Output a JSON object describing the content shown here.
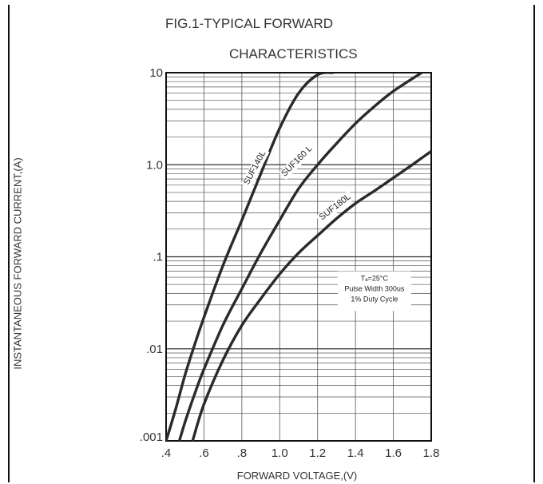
{
  "chart_data": {
    "type": "line",
    "title": "FIG.1-TYPICAL FORWARD",
    "subtitle": "CHARACTERISTICS",
    "xlabel": "FORWARD VOLTAGE,(V)",
    "ylabel": "INSTANTANEOUS FORWARD CURRENT,(A)",
    "xlim": [
      0.4,
      1.8
    ],
    "ylim": [
      0.001,
      10
    ],
    "yscale": "log",
    "grid": true,
    "x_ticks": [
      ".4",
      ".6",
      ".8",
      "1.0",
      "1.2",
      "1.4",
      "1.6",
      "1.8"
    ],
    "y_ticks": [
      ".001",
      ".01",
      ".1",
      "1.0",
      "10"
    ],
    "series": [
      {
        "name": "SUF140L",
        "x": [
          0.4,
          0.45,
          0.5,
          0.55,
          0.6,
          0.7,
          0.8,
          0.9,
          1.0,
          1.1,
          1.2,
          1.28
        ],
        "y": [
          0.001,
          0.0022,
          0.0052,
          0.011,
          0.022,
          0.08,
          0.25,
          0.8,
          2.5,
          6.0,
          9.5,
          10
        ]
      },
      {
        "name": "SUF160 L",
        "x": [
          0.47,
          0.5,
          0.55,
          0.6,
          0.7,
          0.8,
          0.9,
          1.0,
          1.1,
          1.2,
          1.3,
          1.4,
          1.5,
          1.6,
          1.75
        ],
        "y": [
          0.001,
          0.0016,
          0.0032,
          0.006,
          0.018,
          0.045,
          0.11,
          0.25,
          0.55,
          1.0,
          1.7,
          2.8,
          4.3,
          6.3,
          10
        ]
      },
      {
        "name": "SUF180L",
        "x": [
          0.54,
          0.6,
          0.7,
          0.8,
          0.9,
          1.0,
          1.1,
          1.2,
          1.3,
          1.4,
          1.5,
          1.6,
          1.7,
          1.8
        ],
        "y": [
          0.001,
          0.0025,
          0.0075,
          0.018,
          0.035,
          0.065,
          0.11,
          0.17,
          0.26,
          0.38,
          0.52,
          0.72,
          1.0,
          1.4
        ]
      }
    ],
    "annotation": {
      "lines": [
        "Tₐ=25°C",
        "Pulse Width 300us",
        "1% Duty Cycle"
      ]
    }
  }
}
